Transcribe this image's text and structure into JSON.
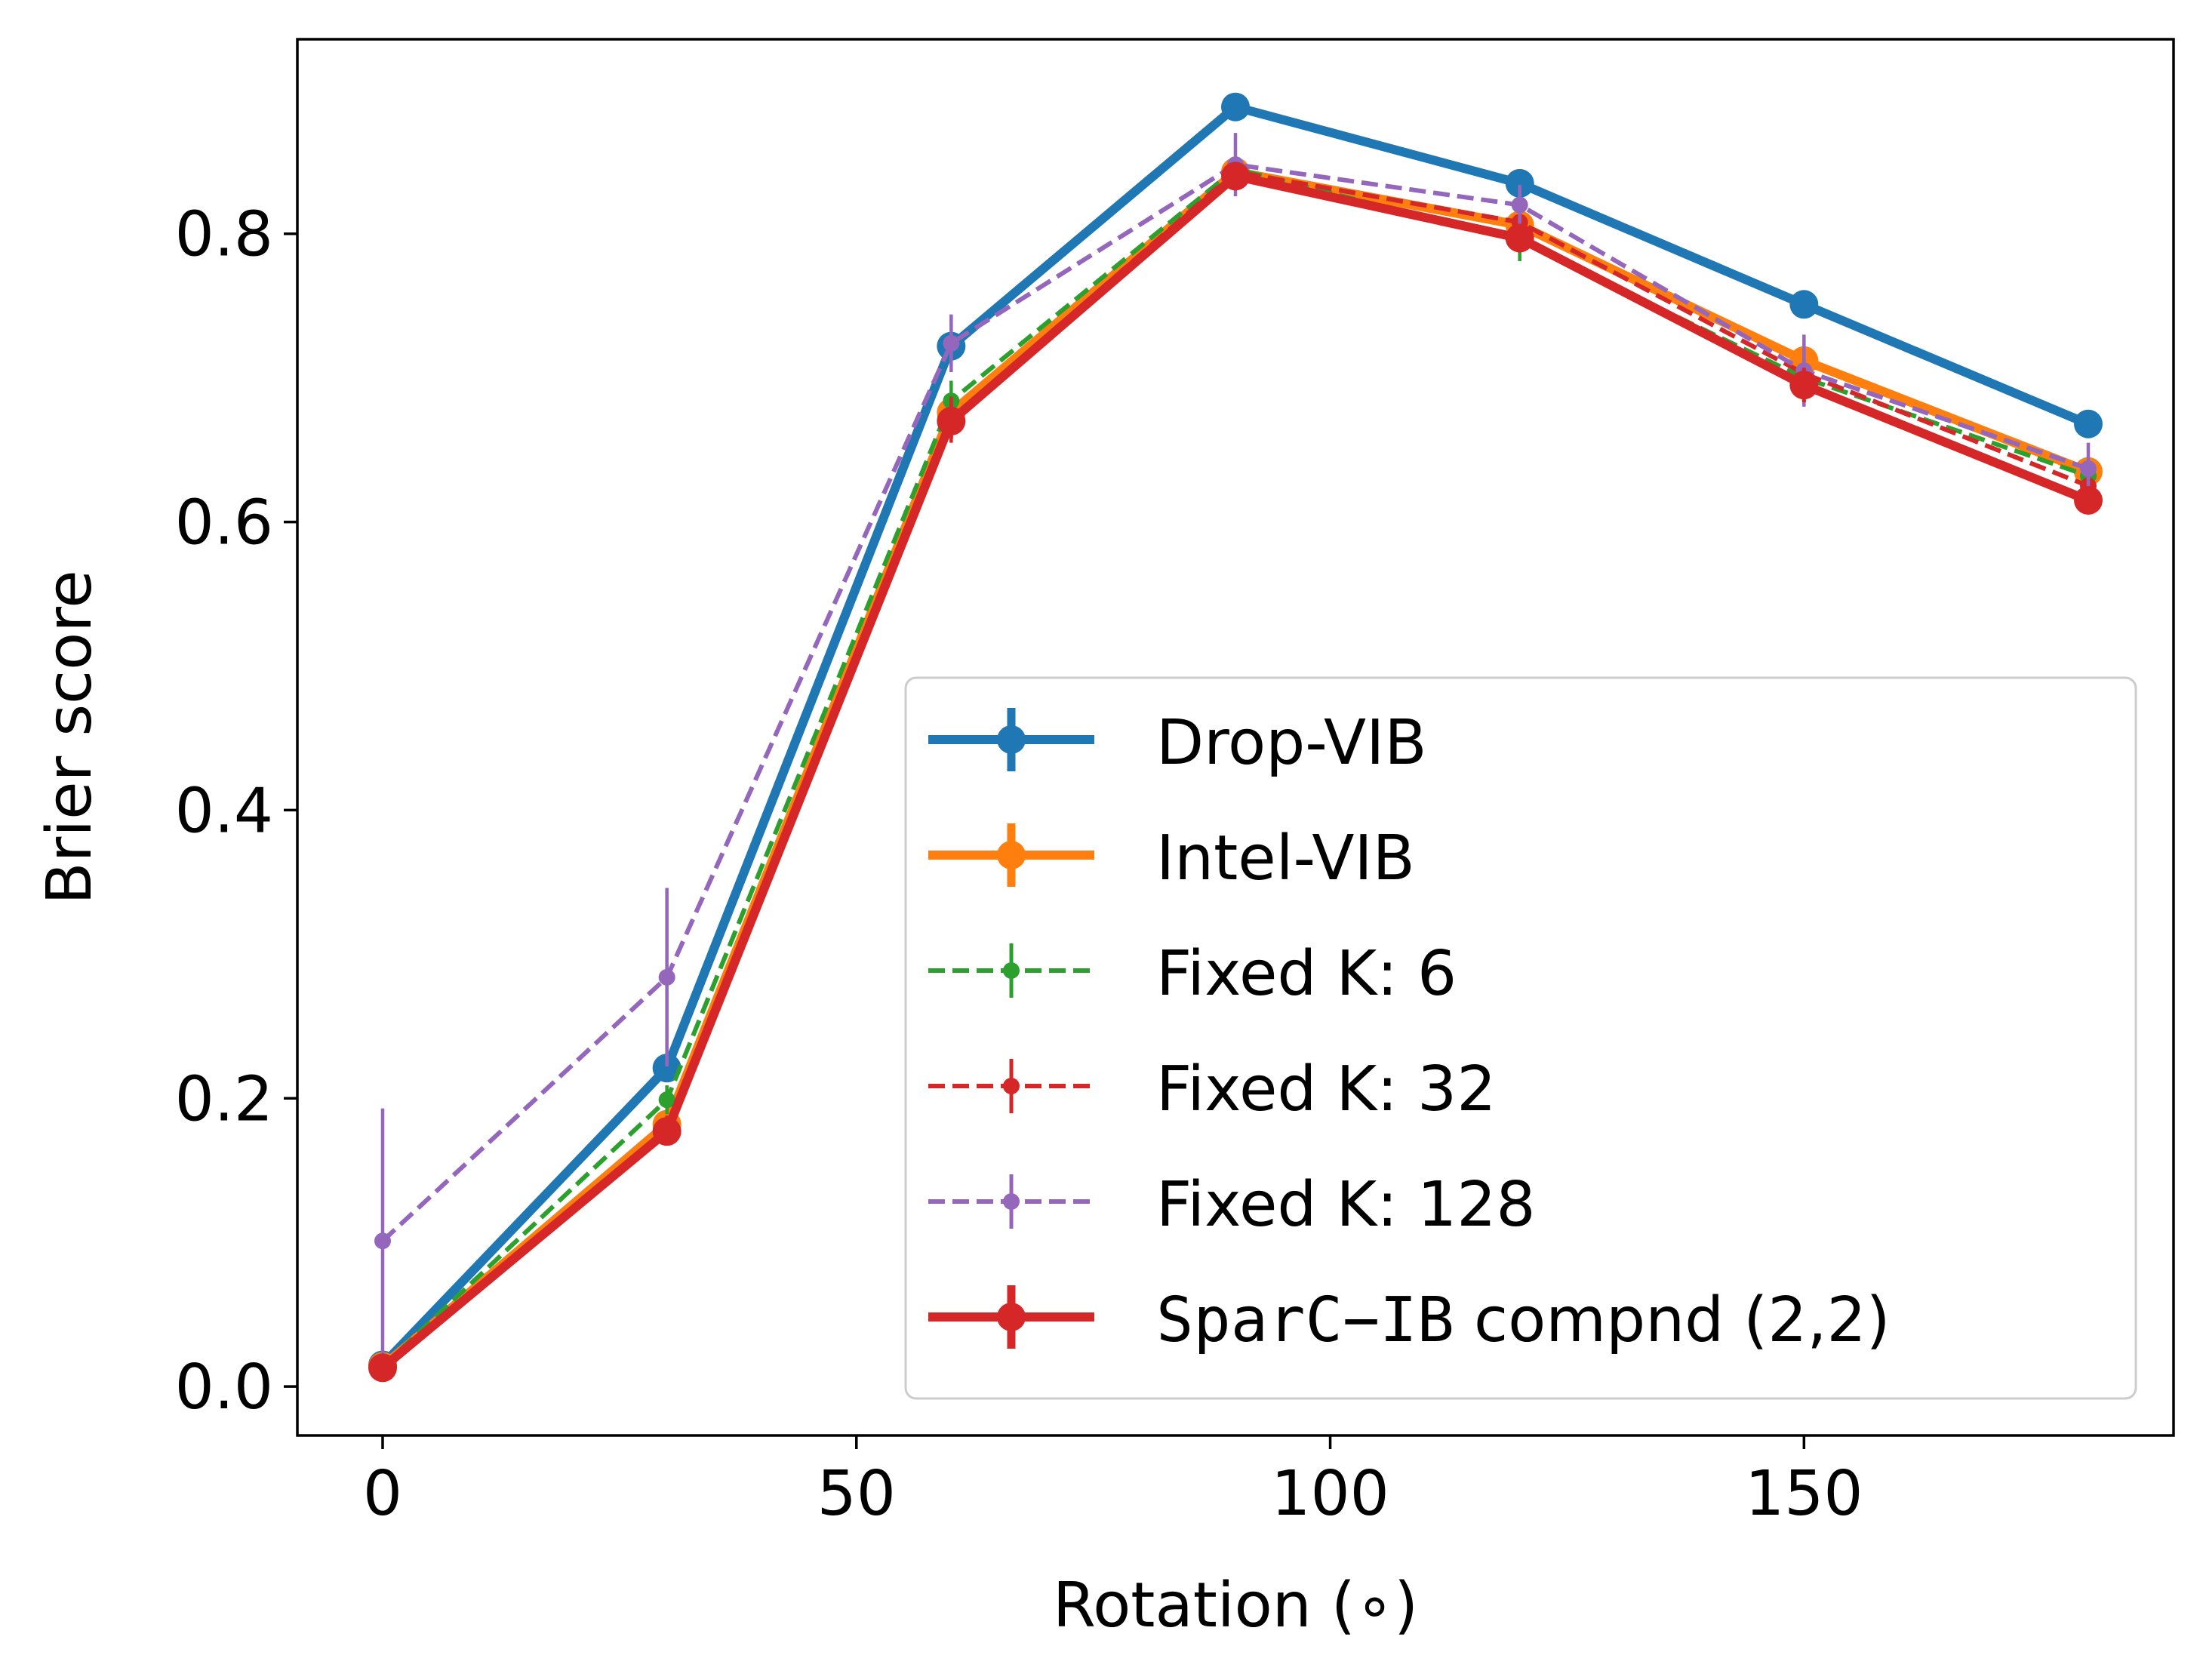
{
  "chart_data": {
    "type": "line",
    "title": "",
    "xlabel": "Rotation (∘)",
    "ylabel": "Brier score",
    "xlim": [
      -9,
      189
    ],
    "ylim": [
      -0.034,
      0.935
    ],
    "xticks": [
      0,
      50,
      100,
      150
    ],
    "xtick_labels": [
      "0",
      "50",
      "100",
      "150"
    ],
    "yticks": [
      0.0,
      0.2,
      0.4,
      0.6,
      0.8
    ],
    "ytick_labels": [
      "0.0",
      "0.2",
      "0.4",
      "0.6",
      "0.8"
    ],
    "grid": false,
    "legend_position": "lower-right",
    "x": [
      0,
      30,
      60,
      90,
      120,
      150,
      180
    ],
    "series": [
      {
        "name": "Drop-VIB",
        "label_parts": [
          "Drop-VIB"
        ],
        "color": "#1f77b4",
        "style": "solid-thick",
        "values": [
          0.015,
          0.221,
          0.722,
          0.888,
          0.835,
          0.751,
          0.668
        ],
        "errors": [
          0.004,
          0.006,
          0.008,
          0.005,
          0.006,
          0.005,
          0.006
        ]
      },
      {
        "name": "Intel-VIB",
        "label_parts": [
          "Intel-VIB"
        ],
        "color": "#ff7f0e",
        "style": "solid-thick",
        "values": [
          0.014,
          0.182,
          0.676,
          0.843,
          0.806,
          0.712,
          0.635
        ],
        "errors": [
          0.004,
          0.006,
          0.01,
          0.006,
          0.008,
          0.008,
          0.007
        ]
      },
      {
        "name": "Fixed K: 6",
        "label_parts": [
          "Fixed K: 6"
        ],
        "color": "#2ca02c",
        "style": "dashed",
        "values": [
          0.014,
          0.199,
          0.684,
          0.845,
          0.795,
          0.7,
          0.632
        ],
        "errors": [
          0.004,
          0.01,
          0.014,
          0.008,
          0.014,
          0.01,
          0.01
        ]
      },
      {
        "name": "Fixed K: 32",
        "label_parts": [
          "Fixed K: 32"
        ],
        "color": "#d62728",
        "style": "dashed",
        "values": [
          0.013,
          0.178,
          0.671,
          0.843,
          0.808,
          0.703,
          0.625
        ],
        "errors": [
          0.004,
          0.01,
          0.016,
          0.008,
          0.01,
          0.01,
          0.01
        ]
      },
      {
        "name": "Fixed K: 128",
        "label_parts": [
          "Fixed K: 128"
        ],
        "color": "#9467bd",
        "style": "dashed",
        "values": [
          0.101,
          0.284,
          0.724,
          0.848,
          0.82,
          0.705,
          0.637
        ],
        "errors": [
          0.092,
          0.062,
          0.02,
          0.022,
          0.014,
          0.025,
          0.018
        ]
      },
      {
        "name": "SparC−IB compnd (2,2)",
        "label_parts": [
          "SparC−IB",
          " compnd (2,2)"
        ],
        "color": "#d62728",
        "style": "solid-thick",
        "values": [
          0.013,
          0.177,
          0.67,
          0.84,
          0.797,
          0.695,
          0.615
        ],
        "errors": [
          0.004,
          0.008,
          0.012,
          0.006,
          0.01,
          0.012,
          0.008
        ]
      }
    ]
  }
}
